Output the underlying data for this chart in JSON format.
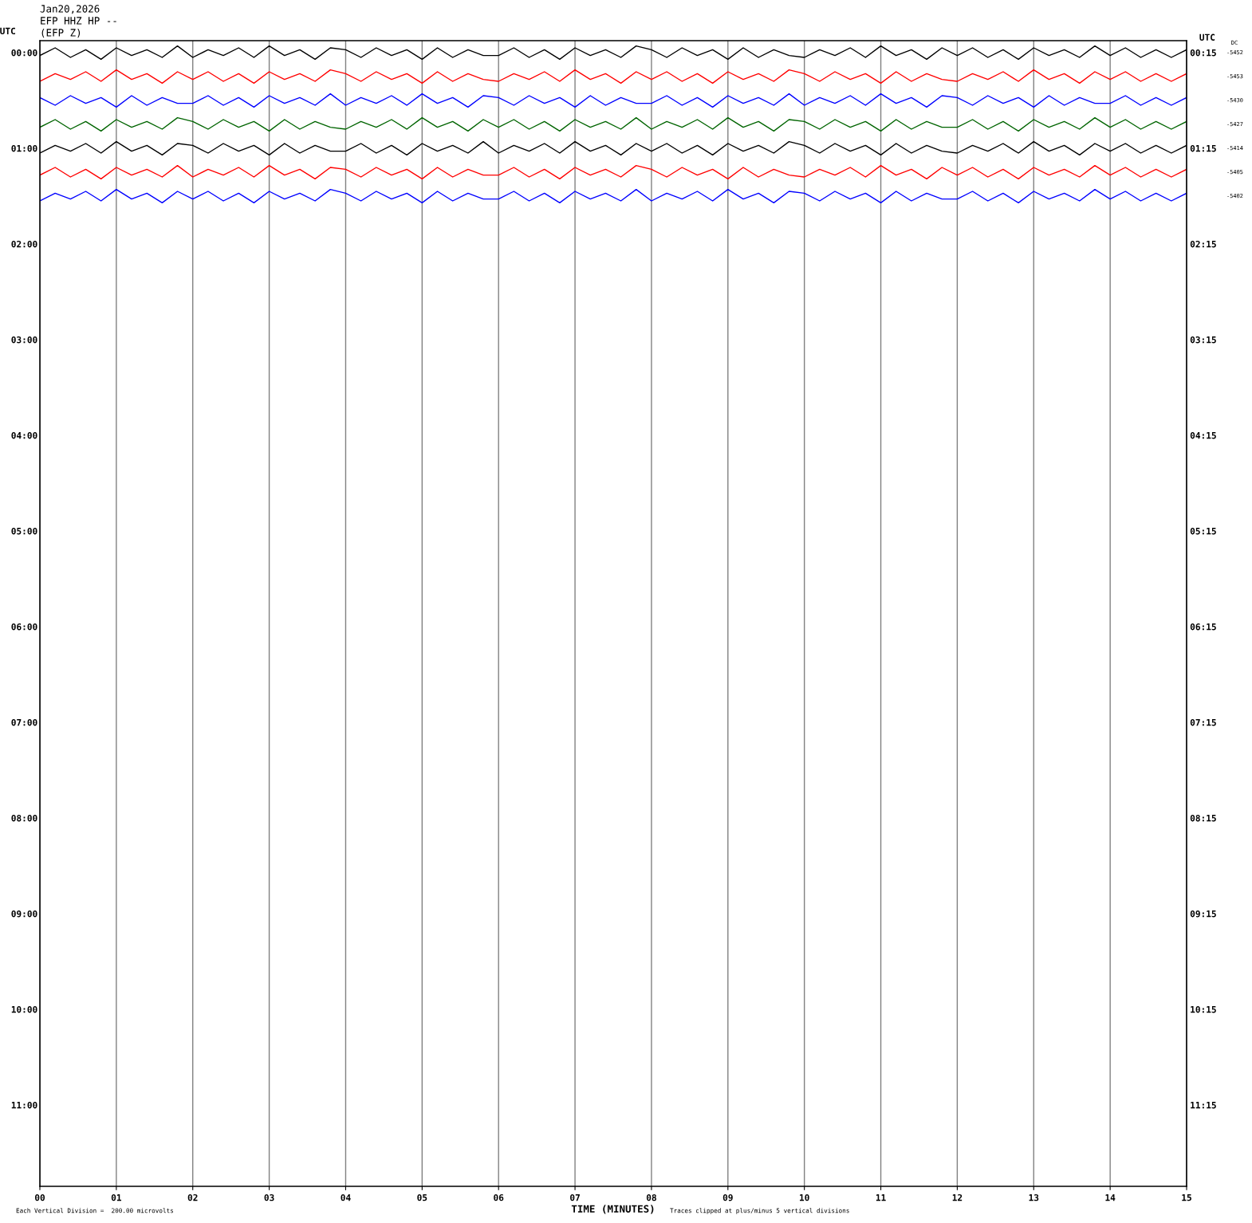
{
  "chart_data": {
    "type": "line",
    "title": "Jan20,2026",
    "subtitle": "EFP HHZ HP --",
    "annotations": [
      "(EFP Z)",
      "Each Vertical Division =  200.00 microvolts",
      "Traces clipped at plus/minus 5 vertical divisions",
      "DC",
      "-5452",
      "-5453",
      "-5430",
      "-5427",
      "-5414",
      "-5405",
      "-5402"
    ],
    "xlabel": "TIME (MINUTES)",
    "ylabel": "UTC",
    "y2label": "UTC",
    "xlim": [
      0,
      15
    ],
    "xticks": [
      {
        "value": 0,
        "label": "00"
      },
      {
        "value": 1,
        "label": "01"
      },
      {
        "value": 2,
        "label": "02"
      },
      {
        "value": 3,
        "label": "03"
      },
      {
        "value": 4,
        "label": "04"
      },
      {
        "value": 5,
        "label": "05"
      },
      {
        "value": 6,
        "label": "06"
      },
      {
        "value": 7,
        "label": "07"
      },
      {
        "value": 8,
        "label": "08"
      },
      {
        "value": 9,
        "label": "09"
      },
      {
        "value": 10,
        "label": "10"
      },
      {
        "value": 11,
        "label": "11"
      },
      {
        "value": 12,
        "label": "12"
      },
      {
        "value": 13,
        "label": "13"
      },
      {
        "value": 14,
        "label": "14"
      },
      {
        "value": 15,
        "label": "15"
      }
    ],
    "ylim": [
      11.85,
      -0.125
    ],
    "yticks": [
      {
        "value": 0,
        "label": "00:00"
      },
      {
        "value": 1,
        "label": "01:00"
      },
      {
        "value": 2,
        "label": "02:00"
      },
      {
        "value": 3,
        "label": "03:00"
      },
      {
        "value": 4,
        "label": "04:00"
      },
      {
        "value": 5,
        "label": "05:00"
      },
      {
        "value": 6,
        "label": "06:00"
      },
      {
        "value": 7,
        "label": "07:00"
      },
      {
        "value": 8,
        "label": "08:00"
      },
      {
        "value": 9,
        "label": "09:00"
      },
      {
        "value": 10,
        "label": "10:00"
      },
      {
        "value": 11,
        "label": "11:00"
      }
    ],
    "y2lim": [
      12.1,
      0.125
    ],
    "y2ticks": [
      {
        "value": 0.25,
        "label": "00:15"
      },
      {
        "value": 1.25,
        "label": "01:15"
      },
      {
        "value": 2.25,
        "label": "02:15"
      },
      {
        "value": 3.25,
        "label": "03:15"
      },
      {
        "value": 4.25,
        "label": "04:15"
      },
      {
        "value": 5.25,
        "label": "05:15"
      },
      {
        "value": 6.25,
        "label": "06:15"
      },
      {
        "value": 7.25,
        "label": "07:15"
      },
      {
        "value": 8.25,
        "label": "08:15"
      },
      {
        "value": 9.25,
        "label": "09:15"
      },
      {
        "value": 10.25,
        "label": "10:15"
      },
      {
        "value": 11.25,
        "label": "11:15"
      }
    ],
    "grid": "x",
    "marker": "none",
    "line_style": "solid",
    "x": [
      0,
      0.2,
      0.4,
      0.6,
      0.8,
      1,
      1.2,
      1.4,
      1.6,
      1.8,
      2,
      2.2,
      2.4,
      2.6,
      2.8,
      3,
      3.2,
      3.4,
      3.6,
      3.8,
      4,
      4.2,
      4.4,
      4.6,
      4.8,
      5,
      5.2,
      5.4,
      5.6,
      5.8,
      6,
      6.2,
      6.4,
      6.6,
      6.8,
      7,
      7.2,
      7.4,
      7.6,
      7.8,
      8,
      8.2,
      8.4,
      8.6,
      8.8,
      9,
      9.2,
      9.4,
      9.6,
      9.8,
      10,
      10.2,
      10.4,
      10.6,
      10.8,
      11,
      11.2,
      11.4,
      11.6,
      11.8,
      12,
      12.2,
      12.4,
      12.6,
      12.8,
      13,
      13.2,
      13.4,
      13.6,
      13.8,
      14,
      14.2,
      14.4,
      14.6,
      14.8,
      15
    ],
    "series": [
      {
        "color": "#000000",
        "values": [
          0.03,
          -0.05,
          0.05,
          -0.03,
          0.07,
          -0.05,
          0.03,
          -0.03,
          0.05,
          -0.07,
          0.05,
          -0.03,
          0.03,
          -0.05,
          0.05,
          -0.07,
          0.03,
          -0.03,
          0.07,
          -0.05,
          -0.03,
          0.05,
          -0.05,
          0.03,
          -0.03,
          0.07,
          -0.05,
          0.05,
          -0.03,
          0.03,
          0.03,
          -0.05,
          0.05,
          -0.03,
          0.07,
          -0.05,
          0.03,
          -0.03,
          0.05,
          -0.07,
          -0.03,
          0.05,
          -0.05,
          0.03,
          -0.03,
          0.07,
          -0.05,
          0.05,
          -0.03,
          0.03,
          0.05,
          -0.03,
          0.03,
          -0.05,
          0.05,
          -0.07,
          0.03,
          -0.03,
          0.07,
          -0.05,
          0.03,
          -0.05,
          0.05,
          -0.03,
          0.07,
          -0.05,
          0.03,
          -0.03,
          0.05,
          -0.07,
          0.03,
          -0.05,
          0.05,
          -0.03,
          0.05,
          -0.03
        ]
      },
      {
        "color": "#ff0000",
        "values": [
          0.3,
          0.22,
          0.28,
          0.2,
          0.3,
          0.18,
          0.28,
          0.22,
          0.32,
          0.2,
          0.28,
          0.2,
          0.3,
          0.22,
          0.32,
          0.2,
          0.28,
          0.22,
          0.3,
          0.18,
          0.22,
          0.3,
          0.2,
          0.28,
          0.22,
          0.32,
          0.2,
          0.3,
          0.22,
          0.28,
          0.3,
          0.22,
          0.28,
          0.2,
          0.3,
          0.18,
          0.28,
          0.22,
          0.32,
          0.2,
          0.28,
          0.2,
          0.3,
          0.22,
          0.32,
          0.2,
          0.28,
          0.22,
          0.3,
          0.18,
          0.22,
          0.3,
          0.2,
          0.28,
          0.22,
          0.32,
          0.2,
          0.3,
          0.22,
          0.28,
          0.3,
          0.22,
          0.28,
          0.2,
          0.3,
          0.18,
          0.28,
          0.22,
          0.32,
          0.2,
          0.28,
          0.2,
          0.3,
          0.22,
          0.3,
          0.22
        ]
      },
      {
        "color": "#0000ff",
        "values": [
          0.47,
          0.55,
          0.45,
          0.53,
          0.47,
          0.57,
          0.45,
          0.55,
          0.47,
          0.53,
          0.53,
          0.45,
          0.55,
          0.47,
          0.57,
          0.45,
          0.53,
          0.47,
          0.55,
          0.43,
          0.55,
          0.47,
          0.53,
          0.45,
          0.55,
          0.43,
          0.53,
          0.47,
          0.57,
          0.45,
          0.47,
          0.55,
          0.45,
          0.53,
          0.47,
          0.57,
          0.45,
          0.55,
          0.47,
          0.53,
          0.53,
          0.45,
          0.55,
          0.47,
          0.57,
          0.45,
          0.53,
          0.47,
          0.55,
          0.43,
          0.55,
          0.47,
          0.53,
          0.45,
          0.55,
          0.43,
          0.53,
          0.47,
          0.57,
          0.45,
          0.47,
          0.55,
          0.45,
          0.53,
          0.47,
          0.57,
          0.45,
          0.55,
          0.47,
          0.53,
          0.53,
          0.45,
          0.55,
          0.47,
          0.55,
          0.47
        ]
      },
      {
        "color": "#006400",
        "values": [
          0.78,
          0.7,
          0.8,
          0.72,
          0.82,
          0.7,
          0.78,
          0.72,
          0.8,
          0.68,
          0.72,
          0.8,
          0.7,
          0.78,
          0.72,
          0.82,
          0.7,
          0.8,
          0.72,
          0.78,
          0.8,
          0.72,
          0.78,
          0.7,
          0.8,
          0.68,
          0.78,
          0.72,
          0.82,
          0.7,
          0.78,
          0.7,
          0.8,
          0.72,
          0.82,
          0.7,
          0.78,
          0.72,
          0.8,
          0.68,
          0.8,
          0.72,
          0.78,
          0.7,
          0.8,
          0.68,
          0.78,
          0.72,
          0.82,
          0.7,
          0.72,
          0.8,
          0.7,
          0.78,
          0.72,
          0.82,
          0.7,
          0.8,
          0.72,
          0.78,
          0.78,
          0.7,
          0.8,
          0.72,
          0.82,
          0.7,
          0.78,
          0.72,
          0.8,
          0.68,
          0.78,
          0.7,
          0.8,
          0.72,
          0.8,
          0.72
        ]
      },
      {
        "color": "#000000",
        "values": [
          1.05,
          0.97,
          1.03,
          0.95,
          1.05,
          0.93,
          1.03,
          0.97,
          1.07,
          0.95,
          0.97,
          1.05,
          0.95,
          1.03,
          0.97,
          1.07,
          0.95,
          1.05,
          0.97,
          1.03,
          1.03,
          0.95,
          1.05,
          0.97,
          1.07,
          0.95,
          1.03,
          0.97,
          1.05,
          0.93,
          1.05,
          0.97,
          1.03,
          0.95,
          1.05,
          0.93,
          1.03,
          0.97,
          1.07,
          0.95,
          1.03,
          0.95,
          1.05,
          0.97,
          1.07,
          0.95,
          1.03,
          0.97,
          1.05,
          0.93,
          0.97,
          1.05,
          0.95,
          1.03,
          0.97,
          1.07,
          0.95,
          1.05,
          0.97,
          1.03,
          1.05,
          0.97,
          1.03,
          0.95,
          1.05,
          0.93,
          1.03,
          0.97,
          1.07,
          0.95,
          1.03,
          0.95,
          1.05,
          0.97,
          1.05,
          0.97
        ]
      },
      {
        "color": "#ff0000",
        "values": [
          1.28,
          1.2,
          1.3,
          1.22,
          1.32,
          1.2,
          1.28,
          1.22,
          1.3,
          1.18,
          1.3,
          1.22,
          1.28,
          1.2,
          1.3,
          1.18,
          1.28,
          1.22,
          1.32,
          1.2,
          1.22,
          1.3,
          1.2,
          1.28,
          1.22,
          1.32,
          1.2,
          1.3,
          1.22,
          1.28,
          1.28,
          1.2,
          1.3,
          1.22,
          1.32,
          1.2,
          1.28,
          1.22,
          1.3,
          1.18,
          1.22,
          1.3,
          1.2,
          1.28,
          1.22,
          1.32,
          1.2,
          1.3,
          1.22,
          1.28,
          1.3,
          1.22,
          1.28,
          1.2,
          1.3,
          1.18,
          1.28,
          1.22,
          1.32,
          1.2,
          1.28,
          1.2,
          1.3,
          1.22,
          1.32,
          1.2,
          1.28,
          1.22,
          1.3,
          1.18,
          1.28,
          1.2,
          1.3,
          1.22,
          1.3,
          1.22
        ]
      },
      {
        "color": "#0000ff",
        "values": [
          1.55,
          1.47,
          1.53,
          1.45,
          1.55,
          1.43,
          1.53,
          1.47,
          1.57,
          1.45,
          1.53,
          1.45,
          1.55,
          1.47,
          1.57,
          1.45,
          1.53,
          1.47,
          1.55,
          1.43,
          1.47,
          1.55,
          1.45,
          1.53,
          1.47,
          1.57,
          1.45,
          1.55,
          1.47,
          1.53,
          1.53,
          1.45,
          1.55,
          1.47,
          1.57,
          1.45,
          1.53,
          1.47,
          1.55,
          1.43,
          1.55,
          1.47,
          1.53,
          1.45,
          1.55,
          1.43,
          1.53,
          1.47,
          1.57,
          1.45,
          1.47,
          1.55,
          1.45,
          1.53,
          1.47,
          1.57,
          1.45,
          1.55,
          1.47,
          1.53,
          1.53,
          1.45,
          1.55,
          1.47,
          1.57,
          1.45,
          1.53,
          1.47,
          1.55,
          1.43,
          1.53,
          1.45,
          1.55,
          1.47,
          1.55,
          1.47
        ]
      }
    ]
  }
}
